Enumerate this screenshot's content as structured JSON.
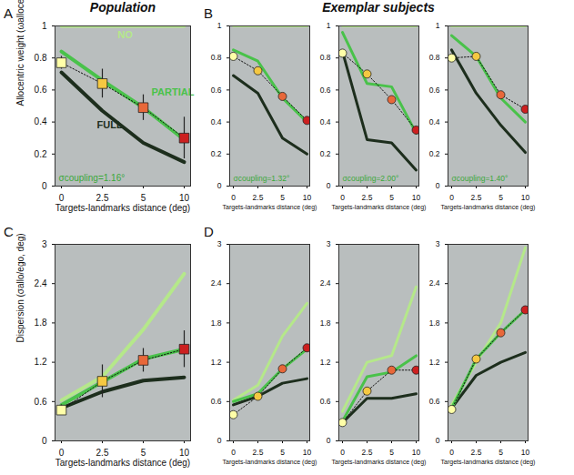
{
  "chart_data": [
    {
      "type": "line",
      "title": "Population",
      "annotations": {
        "panel": "A",
        "coupling": "σcoupling=1.16°"
      },
      "xlabel": "Targets-landmarks distance (deg)",
      "ylabel": "Allocentric weight (ωallocentric)",
      "categories": [
        0,
        2.5,
        5,
        10
      ],
      "ylim": [
        0,
        1
      ],
      "yticks": [
        0,
        0.2,
        0.4,
        0.6,
        0.8,
        1
      ],
      "series": [
        {
          "name": "NO",
          "color": "#b5e88a",
          "line_style": "solid",
          "values": [
            1,
            1,
            1,
            1
          ]
        },
        {
          "name": "FULL",
          "color": "#1d2e1d",
          "line_style": "solid",
          "values": [
            0.71,
            0.47,
            0.27,
            0.15
          ]
        },
        {
          "name": "PARTIAL",
          "color": "#49c24a",
          "line_style": "solid",
          "values": [
            0.84,
            0.66,
            0.49,
            0.29
          ]
        },
        {
          "colors": [
            "#ffffa8",
            "#f5c842",
            "#e8683a",
            "#cc2020"
          ],
          "marker": "square",
          "line_style": "dotted",
          "values": [
            0.77,
            0.64,
            0.49,
            0.3
          ],
          "errors": [
            0.04,
            0.09,
            0.08,
            0.13
          ]
        }
      ]
    },
    {
      "type": "line",
      "title": "Exemplar subjects",
      "annotations": {
        "panel": "B",
        "coupling": "σcoupling=1.32°"
      },
      "xlabel": "Targets-landmarks distance (deg)",
      "categories": [
        0,
        2.5,
        5,
        10
      ],
      "ylim": [
        0,
        1
      ],
      "yticks": [
        0,
        0.2,
        0.4,
        0.6,
        0.8,
        1
      ],
      "series": [
        {
          "color": "#b5e88a",
          "line_style": "solid",
          "values": [
            1,
            1,
            1,
            1
          ]
        },
        {
          "color": "#1d2e1d",
          "line_style": "solid",
          "values": [
            0.69,
            0.58,
            0.3,
            0.2
          ]
        },
        {
          "color": "#49c24a",
          "line_style": "solid",
          "values": [
            0.85,
            0.78,
            0.55,
            0.4
          ]
        },
        {
          "colors": [
            "#ffffa8",
            "#f5c842",
            "#e8683a",
            "#cc2020"
          ],
          "marker": "circle",
          "line_style": "dotted",
          "values": [
            0.81,
            0.72,
            0.56,
            0.41
          ]
        }
      ]
    },
    {
      "type": "line",
      "annotations": {
        "coupling": "σcoupling=2.00°"
      },
      "xlabel": "Targets-landmarks distance (deg)",
      "categories": [
        0,
        2.5,
        5,
        10
      ],
      "ylim": [
        0,
        1
      ],
      "yticks": [
        0,
        0.2,
        0.4,
        0.6,
        0.8,
        1
      ],
      "series": [
        {
          "color": "#b5e88a",
          "line_style": "solid",
          "values": [
            1,
            1,
            1,
            1
          ]
        },
        {
          "color": "#1d2e1d",
          "line_style": "solid",
          "values": [
            0.84,
            0.29,
            0.27,
            0.1
          ]
        },
        {
          "color": "#49c24a",
          "line_style": "solid",
          "values": [
            0.96,
            0.64,
            0.62,
            0.33
          ]
        },
        {
          "colors": [
            "#ffffa8",
            "#f5c842",
            "#e8683a",
            "#cc2020"
          ],
          "marker": "circle",
          "line_style": "dotted",
          "values": [
            0.83,
            0.7,
            0.54,
            0.35
          ]
        }
      ]
    },
    {
      "type": "line",
      "annotations": {
        "coupling": "σcoupling=1.40°"
      },
      "xlabel": "Targets-landmarks distance (deg)",
      "categories": [
        0,
        2.5,
        5,
        10
      ],
      "ylim": [
        0,
        1
      ],
      "yticks": [
        0,
        0.2,
        0.4,
        0.6,
        0.8,
        1
      ],
      "series": [
        {
          "color": "#b5e88a",
          "line_style": "solid",
          "values": [
            1,
            1,
            1,
            1
          ]
        },
        {
          "color": "#1d2e1d",
          "line_style": "solid",
          "values": [
            0.85,
            0.58,
            0.38,
            0.21
          ]
        },
        {
          "color": "#49c24a",
          "line_style": "solid",
          "values": [
            0.94,
            0.81,
            0.55,
            0.4
          ]
        },
        {
          "colors": [
            "#ffffa8",
            "#f5c842",
            "#e8683a",
            "#cc2020"
          ],
          "marker": "circle",
          "line_style": "dotted",
          "values": [
            0.8,
            0.81,
            0.57,
            0.48
          ]
        }
      ]
    },
    {
      "type": "line",
      "annotations": {
        "panel": "C"
      },
      "xlabel": "Targets-landmarks distance (deg)",
      "ylabel": "Dispersion (σallo/ego, deg)",
      "categories": [
        0,
        2.5,
        5,
        10
      ],
      "ylim": [
        0,
        3
      ],
      "yticks": [
        0,
        0.6,
        1.2,
        1.8,
        2.4,
        3
      ],
      "series": [
        {
          "color": "#b5e88a",
          "line_style": "solid",
          "values": [
            0.62,
            0.98,
            1.7,
            2.55
          ]
        },
        {
          "color": "#1d2e1d",
          "line_style": "solid",
          "values": [
            0.5,
            0.75,
            0.92,
            0.97
          ]
        },
        {
          "color": "#49c24a",
          "line_style": "solid",
          "values": [
            0.55,
            0.9,
            1.25,
            1.4
          ]
        },
        {
          "colors": [
            "#ffffa8",
            "#f5c842",
            "#e8683a",
            "#cc2020"
          ],
          "marker": "square",
          "line_style": "dotted",
          "values": [
            0.47,
            0.91,
            1.23,
            1.4
          ],
          "errors": [
            0.08,
            0.25,
            0.18,
            0.28
          ]
        }
      ]
    },
    {
      "type": "line",
      "annotations": {
        "panel": "D"
      },
      "xlabel": "Targets-landmarks distance (deg)",
      "categories": [
        0,
        2.5,
        5,
        10
      ],
      "ylim": [
        0,
        3
      ],
      "yticks": [
        0,
        0.6,
        1.2,
        1.8,
        2.4,
        3
      ],
      "series": [
        {
          "color": "#b5e88a",
          "line_style": "solid",
          "values": [
            0.62,
            0.85,
            1.6,
            2.1
          ]
        },
        {
          "color": "#1d2e1d",
          "line_style": "solid",
          "values": [
            0.55,
            0.68,
            0.88,
            0.95
          ]
        },
        {
          "color": "#49c24a",
          "line_style": "solid",
          "values": [
            0.6,
            0.72,
            1.1,
            1.4
          ]
        },
        {
          "colors": [
            "#ffffa8",
            "#f5c842",
            "#e8683a",
            "#cc2020"
          ],
          "marker": "circle",
          "line_style": "dotted",
          "values": [
            0.4,
            0.68,
            1.1,
            1.42
          ]
        }
      ]
    },
    {
      "type": "line",
      "xlabel": "Targets-landmarks distance (deg)",
      "categories": [
        0,
        2.5,
        5,
        10
      ],
      "ylim": [
        0,
        3
      ],
      "yticks": [
        0,
        0.6,
        1.2,
        1.8,
        2.4,
        3
      ],
      "series": [
        {
          "color": "#b5e88a",
          "line_style": "solid",
          "values": [
            0.45,
            1.2,
            1.3,
            2.35
          ]
        },
        {
          "color": "#1d2e1d",
          "line_style": "solid",
          "values": [
            0.28,
            0.65,
            0.65,
            0.72
          ]
        },
        {
          "color": "#49c24a",
          "line_style": "solid",
          "values": [
            0.3,
            0.98,
            1.05,
            1.3
          ]
        },
        {
          "colors": [
            "#ffffa8",
            "#f5c842",
            "#e8683a",
            "#cc2020"
          ],
          "marker": "circle",
          "line_style": "dotted",
          "values": [
            0.28,
            0.76,
            1.08,
            1.08
          ]
        }
      ]
    },
    {
      "type": "line",
      "xlabel": "Targets-landmarks distance (deg)",
      "categories": [
        0,
        2.5,
        5,
        10
      ],
      "ylim": [
        0,
        3
      ],
      "yticks": [
        0,
        0.6,
        1.2,
        1.8,
        2.4,
        3
      ],
      "series": [
        {
          "color": "#b5e88a",
          "line_style": "solid",
          "values": [
            0.55,
            1.2,
            1.8,
            2.95
          ]
        },
        {
          "color": "#1d2e1d",
          "line_style": "solid",
          "values": [
            0.5,
            1.0,
            1.2,
            1.35
          ]
        },
        {
          "color": "#49c24a",
          "line_style": "solid",
          "values": [
            0.5,
            1.25,
            1.65,
            2.0
          ]
        },
        {
          "colors": [
            "#ffffa8",
            "#f5c842",
            "#e8683a",
            "#cc2020"
          ],
          "marker": "circle",
          "line_style": "dotted",
          "values": [
            0.48,
            1.25,
            1.65,
            2.0
          ]
        }
      ]
    }
  ]
}
